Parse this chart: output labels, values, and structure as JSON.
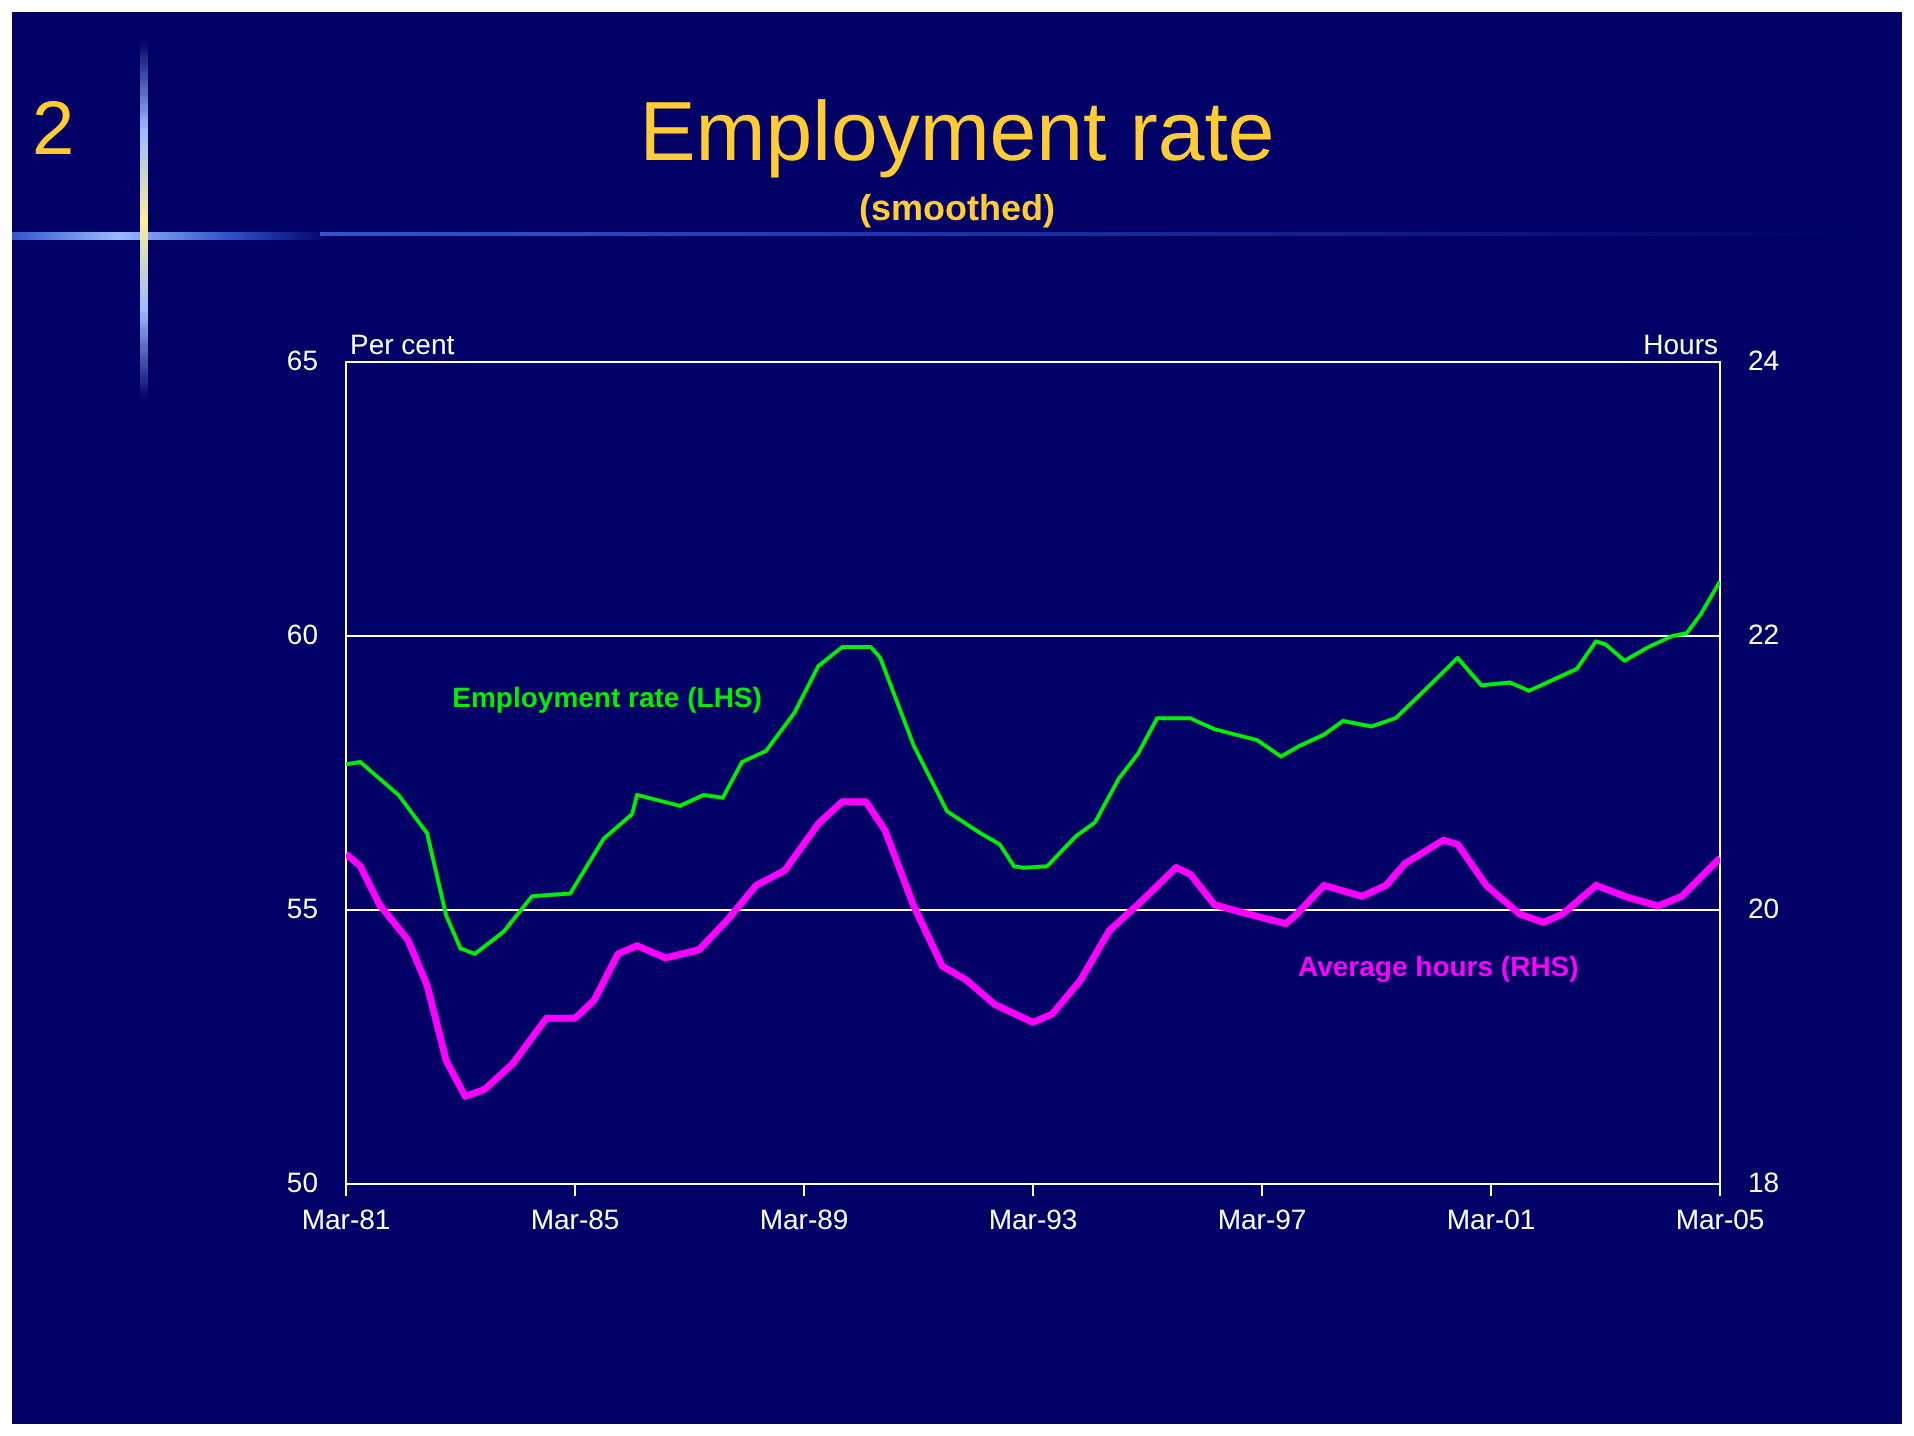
{
  "chart_data": {
    "type": "line",
    "title": "Employment rate",
    "subtitle": "(smoothed)",
    "ylabel": "Per cent",
    "y2label": "Hours",
    "annotations": [
      "2"
    ],
    "xlim": [
      "1981-03",
      "2005-03"
    ],
    "xticks": [
      {
        "value": "1981-03",
        "label": "Mar-81"
      },
      {
        "value": "1985-03",
        "label": "Mar-85"
      },
      {
        "value": "1989-03",
        "label": "Mar-89"
      },
      {
        "value": "1993-03",
        "label": "Mar-93"
      },
      {
        "value": "1997-03",
        "label": "Mar-97"
      },
      {
        "value": "2001-03",
        "label": "Mar-01"
      },
      {
        "value": "2005-03",
        "label": "Mar-05"
      }
    ],
    "ylim": [
      50,
      65
    ],
    "yticks": [
      50,
      55,
      60,
      65
    ],
    "y2lim": [
      18,
      24
    ],
    "y2ticks": [
      18,
      20,
      22,
      24
    ],
    "grid": "y",
    "legend": false,
    "marker": "none",
    "line_style": "solid",
    "series": [
      {
        "name": "Employment rate (LHS)",
        "color": "#00ee00",
        "x": [
          "1981-03",
          "1981-06",
          "1982-02",
          "1982-08",
          "1982-12",
          "1983-03",
          "1983-06",
          "1983-12",
          "1984-06",
          "1985-02",
          "1985-09",
          "1986-03",
          "1986-04",
          "1987-01",
          "1987-06",
          "1987-10",
          "1988-02",
          "1988-07",
          "1989-01",
          "1989-06",
          "1989-11",
          "1990-05",
          "1990-07",
          "1991-02",
          "1991-09",
          "1992-04",
          "1992-08",
          "1992-11",
          "1993-01",
          "1993-06",
          "1993-12",
          "1994-04",
          "1994-09",
          "1995-01",
          "1995-05",
          "1995-12",
          "1996-05",
          "1997-02",
          "1997-07",
          "1997-11",
          "1998-04",
          "1998-08",
          "1999-02",
          "1999-07",
          "2000-01",
          "2000-08",
          "2001-01",
          "2001-07",
          "2001-11",
          "2002-04",
          "2002-09",
          "2003-01",
          "2003-03",
          "2003-07",
          "2003-12",
          "2004-05",
          "2004-08",
          "2004-11",
          "2005-03"
        ],
        "values": [
          57.66,
          57.7,
          57.1,
          56.4,
          54.9,
          54.3,
          54.2,
          54.6,
          55.25,
          55.3,
          56.3,
          56.75,
          57.1,
          56.9,
          57.1,
          57.05,
          57.7,
          57.9,
          58.6,
          59.45,
          59.8,
          59.8,
          59.6,
          58.0,
          56.8,
          56.4,
          56.2,
          55.8,
          55.77,
          55.8,
          56.35,
          56.6,
          57.4,
          57.85,
          58.5,
          58.5,
          58.3,
          58.1,
          57.8,
          58.0,
          58.2,
          58.45,
          58.35,
          58.5,
          59.0,
          59.6,
          59.1,
          59.15,
          59.0,
          59.2,
          59.4,
          59.9,
          59.85,
          59.55,
          59.8,
          60.0,
          60.05,
          60.4,
          61.0
        ]
      },
      {
        "name": "Average hours (RHS)",
        "color": "#ff00ff",
        "axis": "y2",
        "x": [
          "1981-03",
          "1981-06",
          "1981-10",
          "1982-04",
          "1982-08",
          "1982-12",
          "1983-04",
          "1983-08",
          "1984-02",
          "1984-09",
          "1985-03",
          "1985-07",
          "1985-12",
          "1986-04",
          "1986-10",
          "1987-05",
          "1987-11",
          "1988-05",
          "1988-11",
          "1989-06",
          "1989-11",
          "1990-04",
          "1990-08",
          "1991-02",
          "1991-08",
          "1992-01",
          "1992-07",
          "1993-03",
          "1993-07",
          "1994-01",
          "1994-07",
          "1995-01",
          "1995-09",
          "1995-12",
          "1996-05",
          "1996-10",
          "1997-08",
          "1997-10",
          "1998-04",
          "1998-12",
          "1999-05",
          "1999-09",
          "2000-05",
          "2000-08",
          "2001-02",
          "2001-09",
          "2002-02",
          "2002-06",
          "2003-01",
          "2003-07",
          "2004-02",
          "2004-07",
          "2005-03"
        ],
        "values": [
          20.41,
          20.32,
          20.04,
          19.78,
          19.45,
          18.9,
          18.64,
          18.69,
          18.88,
          19.21,
          19.21,
          19.34,
          19.68,
          19.74,
          19.65,
          19.71,
          19.93,
          20.18,
          20.29,
          20.63,
          20.79,
          20.79,
          20.58,
          20.03,
          19.59,
          19.49,
          19.31,
          19.18,
          19.24,
          19.49,
          19.85,
          20.04,
          20.31,
          20.26,
          20.04,
          19.99,
          19.9,
          19.96,
          20.18,
          20.1,
          20.18,
          20.34,
          20.51,
          20.48,
          20.18,
          19.97,
          19.91,
          19.97,
          20.18,
          20.1,
          20.03,
          20.1,
          20.38
        ]
      }
    ]
  }
}
